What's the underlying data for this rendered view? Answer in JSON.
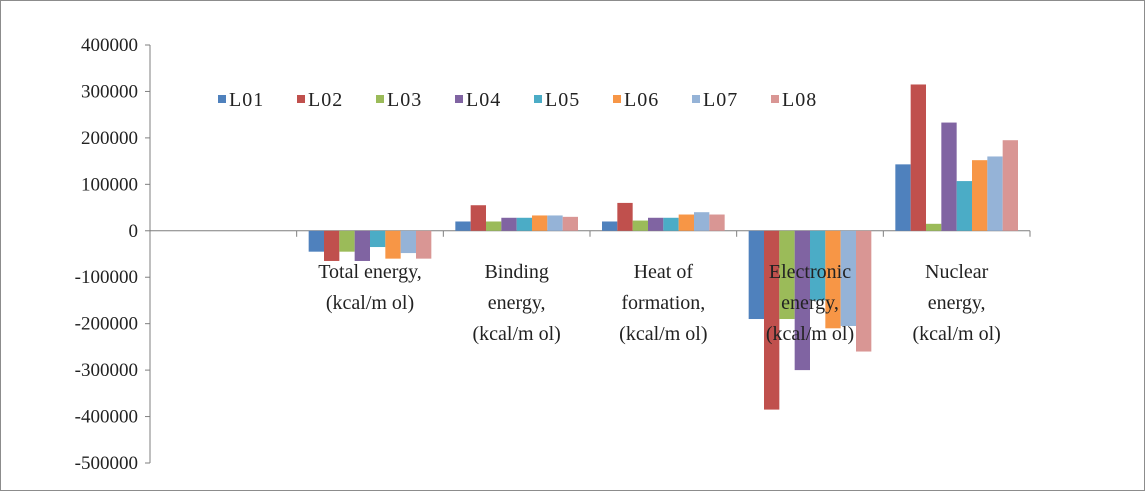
{
  "chart_data": {
    "type": "bar",
    "title": "",
    "xlabel": "",
    "ylabel": "",
    "ylim": [
      -500000,
      400000
    ],
    "y_ticks": [
      400000,
      300000,
      200000,
      100000,
      0,
      -100000,
      -200000,
      -300000,
      -400000,
      -500000
    ],
    "y_tick_labels": [
      "400000",
      "300000",
      "200000",
      "100000",
      "0",
      "-100000",
      "-200000",
      "-300000",
      "-400000",
      "-500000"
    ],
    "categories": [
      "",
      "Total energy, (kcal/m ol)",
      "Binding energy, (kcal/m ol)",
      "Heat of formation, (kcal/m ol)",
      "Electronic energy, (kcal/m ol)",
      "Nuclear energy, (kcal/m ol)"
    ],
    "category_lines": [
      [
        ""
      ],
      [
        "Total energy,",
        "(kcal/m ol)"
      ],
      [
        "Binding",
        "energy,",
        "(kcal/m ol)"
      ],
      [
        "Heat of",
        "formation,",
        "(kcal/m ol)"
      ],
      [
        "Electronic",
        "energy,",
        "(kcal/m ol)"
      ],
      [
        "Nuclear",
        "energy,",
        "(kcal/m ol)"
      ]
    ],
    "series": [
      {
        "name": "L01",
        "color": "#4f81bd",
        "values": [
          null,
          -45000,
          20000,
          20000,
          -190000,
          143000
        ]
      },
      {
        "name": "L02",
        "color": "#c0504d",
        "values": [
          null,
          -65000,
          55000,
          60000,
          -385000,
          315000
        ]
      },
      {
        "name": "L03",
        "color": "#9bbb59",
        "values": [
          null,
          -45000,
          20000,
          22000,
          -190000,
          15000
        ]
      },
      {
        "name": "L04",
        "color": "#8064a2",
        "values": [
          null,
          -65000,
          28000,
          28000,
          -300000,
          233000
        ]
      },
      {
        "name": "L05",
        "color": "#4bacc6",
        "values": [
          null,
          -35000,
          28000,
          28000,
          -150000,
          107000
        ]
      },
      {
        "name": "L06",
        "color": "#f79646",
        "values": [
          null,
          -60000,
          33000,
          35000,
          -210000,
          152000
        ]
      },
      {
        "name": "L07",
        "color": "#95b3d7",
        "values": [
          null,
          -48000,
          33000,
          40000,
          -205000,
          160000
        ]
      },
      {
        "name": "L08",
        "color": "#d99694",
        "values": [
          null,
          -60000,
          30000,
          35000,
          -260000,
          195000
        ]
      }
    ],
    "legend": "top-left",
    "grid": false
  }
}
